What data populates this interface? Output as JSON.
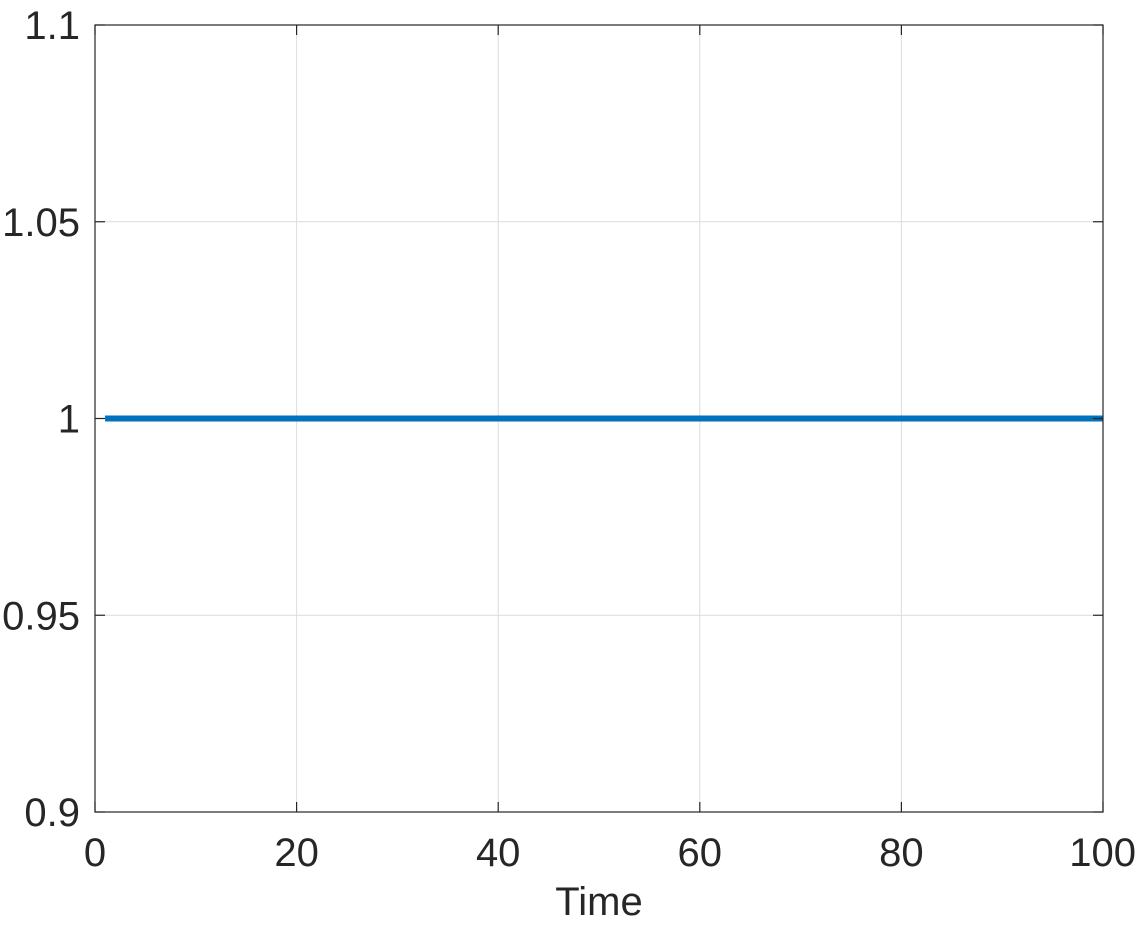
{
  "chart_data": {
    "type": "line",
    "title": "",
    "xlabel": "Time",
    "ylabel": "",
    "xlim": [
      0,
      100
    ],
    "ylim": [
      0.9,
      1.1
    ],
    "xticks": [
      0,
      20,
      40,
      60,
      80,
      100
    ],
    "yticks": [
      0.9,
      0.95,
      1,
      1.05,
      1.1
    ],
    "xtick_labels": [
      "0",
      "20",
      "40",
      "60",
      "80",
      "100"
    ],
    "ytick_labels": [
      "0.9",
      "0.95",
      "1",
      "1.05",
      "1.1"
    ],
    "grid": true,
    "legend": "none",
    "series": [
      {
        "color": "#0072BD",
        "x": [
          1,
          100
        ],
        "y": [
          1,
          1
        ]
      }
    ]
  }
}
